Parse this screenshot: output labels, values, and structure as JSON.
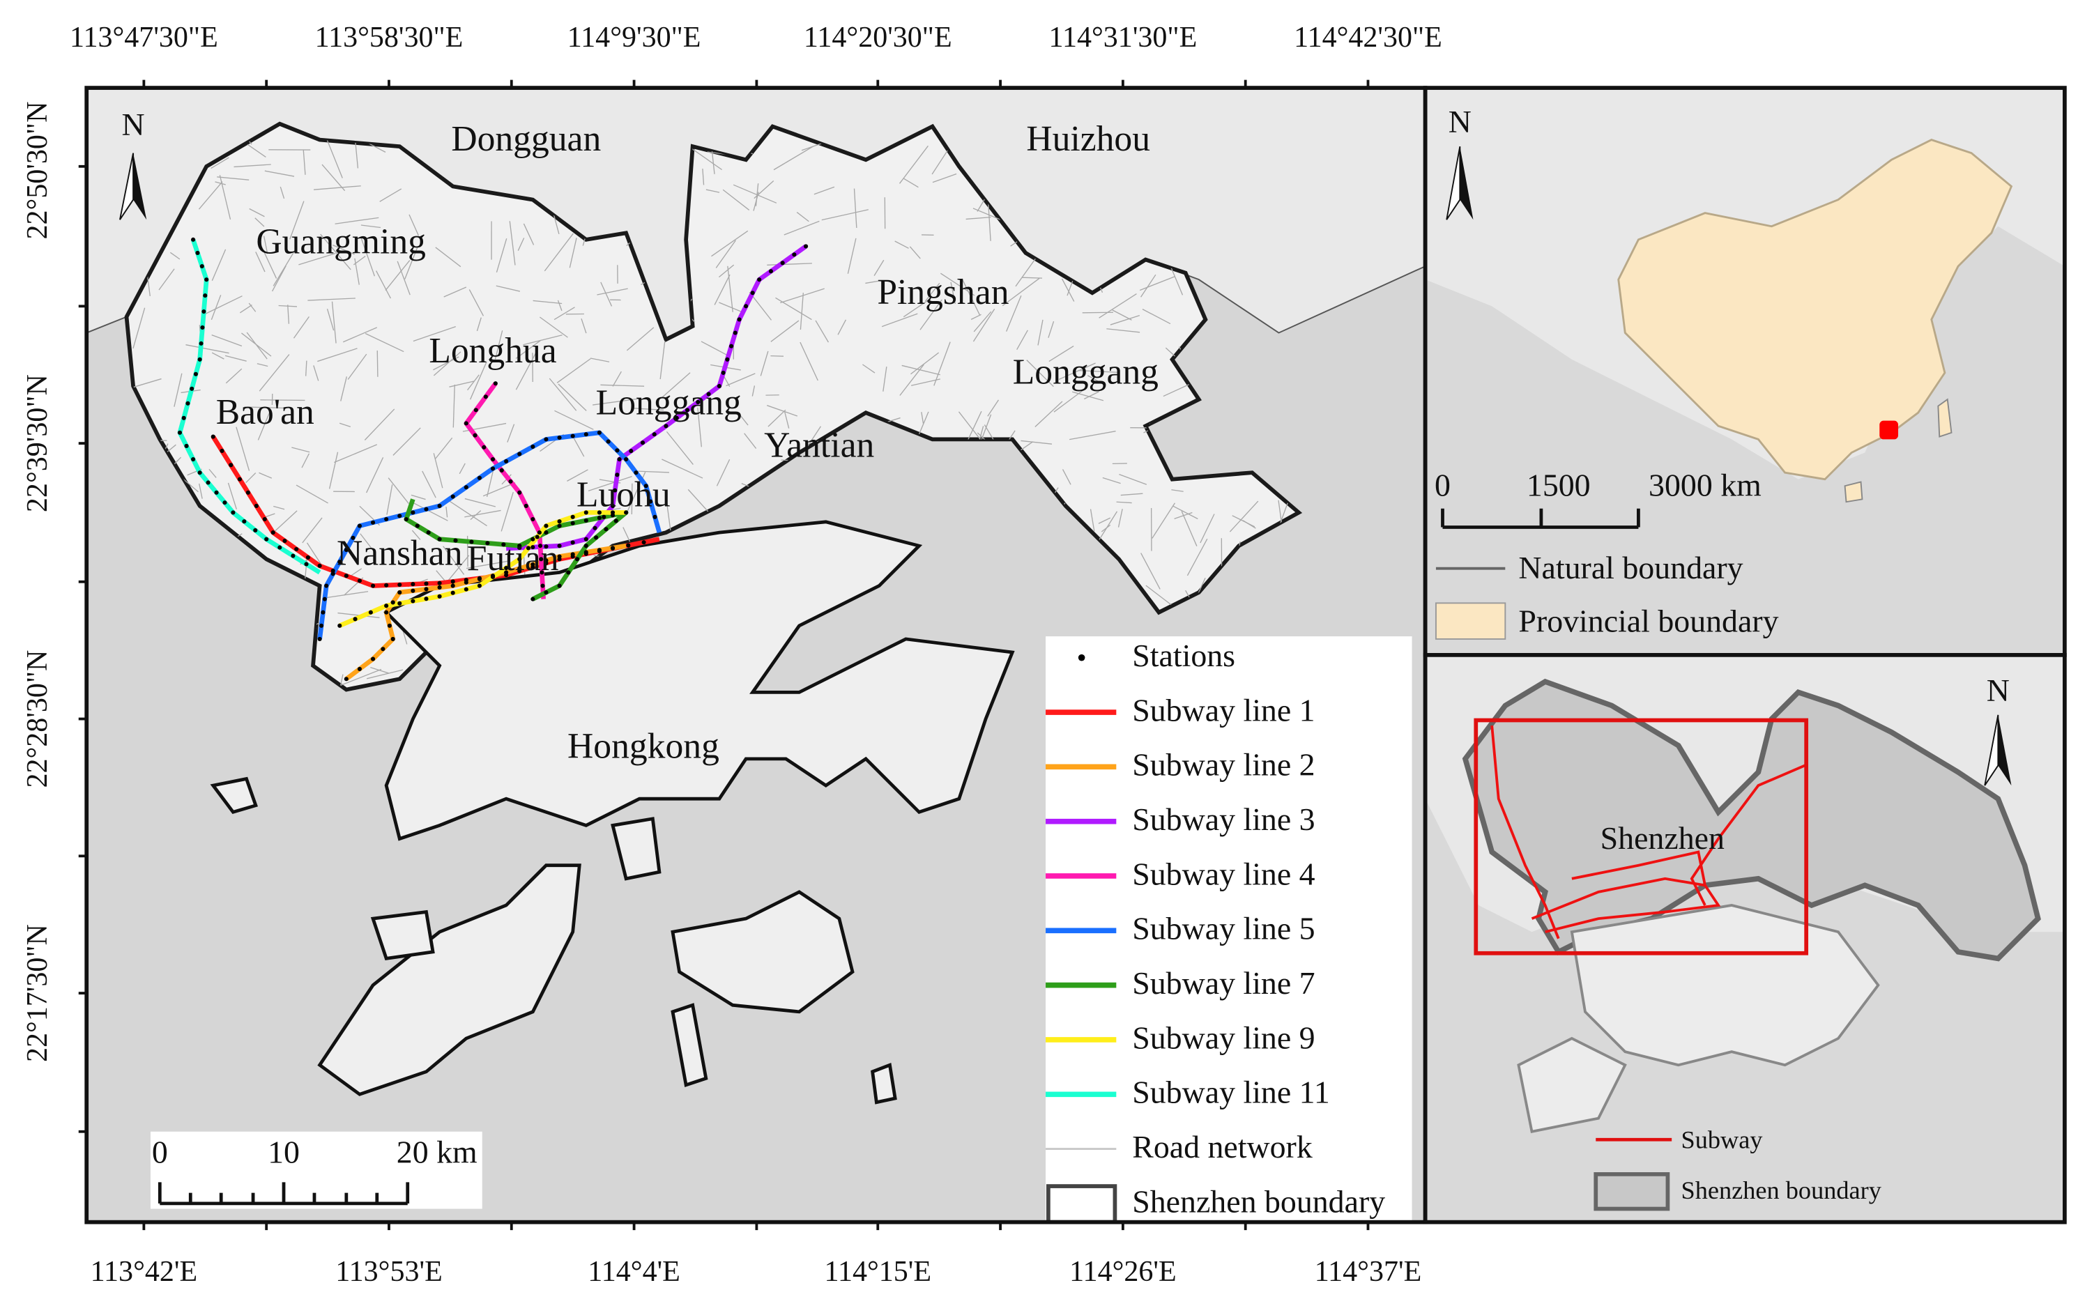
{
  "axes": {
    "top": [
      "113°47'30\"E",
      "113°58'30\"E",
      "114°9'30\"E",
      "114°20'30\"E",
      "114°31'30\"E",
      "114°42'30\"E"
    ],
    "bottom": [
      "113°42'E",
      "113°53'E",
      "114°4'E",
      "114°15'E",
      "114°26'E",
      "114°37'E"
    ],
    "left": [
      "22°50'30\"N",
      "22°39'30\"N",
      "22°28'30\"N",
      "22°17'30\"N"
    ]
  },
  "main_map": {
    "north": "N",
    "places": [
      "Dongguan",
      "Huizhou",
      "Guangming",
      "Pingshan",
      "Longhua",
      "Longgang",
      "Longgang",
      "Bao'an",
      "Yantian",
      "Luohu",
      "Nanshan",
      "Futian",
      "Hongkong"
    ],
    "scale_bar": [
      "0",
      "10",
      "20 km"
    ],
    "legend": [
      {
        "label": "Stations",
        "color": "#000000"
      },
      {
        "label": "Subway line 1",
        "color": "#ff1a1a"
      },
      {
        "label": "Subway line 2",
        "color": "#ffa31a"
      },
      {
        "label": "Subway line 3",
        "color": "#b01aff"
      },
      {
        "label": "Subway line 4",
        "color": "#ff1ab0"
      },
      {
        "label": "Subway line 5",
        "color": "#1a6fff"
      },
      {
        "label": "Subway line 7",
        "color": "#2e9e1a"
      },
      {
        "label": "Subway line 9",
        "color": "#ffee1a"
      },
      {
        "label": "Subway line 11",
        "color": "#1affd1"
      },
      {
        "label": "Road network",
        "color": "#c8c8c8"
      },
      {
        "label": "Shenzhen boundary",
        "color": "#444444"
      }
    ]
  },
  "china_inset": {
    "north": "N",
    "scale_bar": [
      "0",
      "1500",
      "3000 km"
    ],
    "legend": [
      "Natural boundary",
      "Provincial boundary"
    ]
  },
  "shenzhen_inset": {
    "north": "N",
    "label": "Shenzhen",
    "legend": [
      "Subway",
      "Shenzhen boundary"
    ]
  }
}
